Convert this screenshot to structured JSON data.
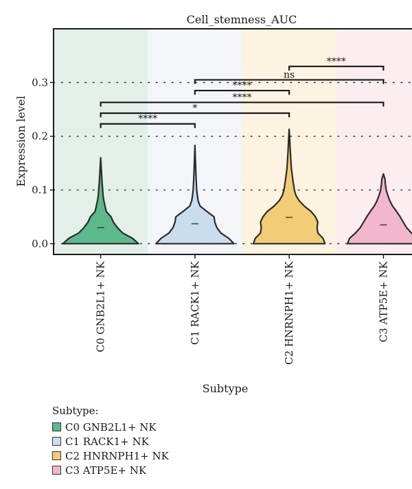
{
  "chart_data": {
    "type": "violin",
    "title": "Cell_stemness_AUC",
    "xlabel": "Subtype",
    "ylabel": "Expression level",
    "ylim": [
      -0.02,
      0.4
    ],
    "yticks": [
      "0.0",
      "0.1",
      "0.2",
      "0.3"
    ],
    "ytick_values": [
      0,
      0.1,
      0.2,
      0.3
    ],
    "grid": "horizontal dotted",
    "categories": [
      "C0 GNB2L1+ NK",
      "C1 RACK1+ NK",
      "C2 HNRNPH1+ NK",
      "C3 ATP5E+ NK"
    ],
    "series": [
      {
        "category": "C0 GNB2L1+ NK",
        "fill": "#5bb98b",
        "background": "#e3efe8",
        "median": 0.03,
        "max": 0.16,
        "density": [
          [
            0,
            0.95
          ],
          [
            0.01,
            0.8
          ],
          [
            0.02,
            0.55
          ],
          [
            0.03,
            0.42
          ],
          [
            0.04,
            0.32
          ],
          [
            0.05,
            0.26
          ],
          [
            0.06,
            0.14
          ],
          [
            0.07,
            0.11
          ],
          [
            0.08,
            0.08
          ],
          [
            0.09,
            0.06
          ],
          [
            0.1,
            0.05
          ],
          [
            0.12,
            0.03
          ],
          [
            0.14,
            0.015
          ],
          [
            0.16,
            0
          ]
        ]
      },
      {
        "category": "C1 RACK1+ NK",
        "fill": "#c9dcf0",
        "background": "#f3f5f8",
        "median": 0.037,
        "max": 0.183,
        "density": [
          [
            0,
            0.98
          ],
          [
            0.01,
            0.85
          ],
          [
            0.02,
            0.65
          ],
          [
            0.03,
            0.55
          ],
          [
            0.04,
            0.5
          ],
          [
            0.05,
            0.48
          ],
          [
            0.06,
            0.3
          ],
          [
            0.07,
            0.13
          ],
          [
            0.08,
            0.08
          ],
          [
            0.09,
            0.06
          ],
          [
            0.1,
            0.045
          ],
          [
            0.12,
            0.03
          ],
          [
            0.15,
            0.015
          ],
          [
            0.183,
            0
          ]
        ]
      },
      {
        "category": "C2 HNRNPH1+ NK",
        "fill": "#f3cd75",
        "background": "#fcf3e0",
        "median": 0.049,
        "max": 0.213,
        "density": [
          [
            0,
            0.9
          ],
          [
            0.01,
            0.85
          ],
          [
            0.02,
            0.72
          ],
          [
            0.03,
            0.7
          ],
          [
            0.04,
            0.72
          ],
          [
            0.05,
            0.66
          ],
          [
            0.06,
            0.55
          ],
          [
            0.07,
            0.38
          ],
          [
            0.08,
            0.25
          ],
          [
            0.09,
            0.17
          ],
          [
            0.1,
            0.13
          ],
          [
            0.12,
            0.09
          ],
          [
            0.14,
            0.055
          ],
          [
            0.17,
            0.03
          ],
          [
            0.2,
            0.01
          ],
          [
            0.213,
            0
          ]
        ]
      },
      {
        "category": "C3 ATP5E+ NK",
        "fill": "#f3b6cf",
        "background": "#fcedf1",
        "median": 0.035,
        "max": 0.13,
        "density": [
          [
            0,
            0.9
          ],
          [
            0.01,
            0.85
          ],
          [
            0.02,
            0.7
          ],
          [
            0.03,
            0.58
          ],
          [
            0.04,
            0.5
          ],
          [
            0.05,
            0.42
          ],
          [
            0.06,
            0.33
          ],
          [
            0.07,
            0.23
          ],
          [
            0.08,
            0.16
          ],
          [
            0.09,
            0.11
          ],
          [
            0.1,
            0.07
          ],
          [
            0.11,
            0.05
          ],
          [
            0.12,
            0.04
          ],
          [
            0.13,
            0
          ]
        ]
      }
    ],
    "comparisons": [
      {
        "from": 0,
        "to": 1,
        "label": "****",
        "y": 0.223
      },
      {
        "from": 0,
        "to": 3,
        "label": "****",
        "y": 0.263
      },
      {
        "from": 0,
        "to": 2,
        "label": "*",
        "y": 0.243
      },
      {
        "from": 1,
        "to": 2,
        "label": "****",
        "y": 0.285
      },
      {
        "from": 1,
        "to": 3,
        "label": "ns",
        "y": 0.305
      },
      {
        "from": 2,
        "to": 3,
        "label": "****",
        "y": 0.33
      }
    ]
  },
  "legend": {
    "title": "Subtype:",
    "items": [
      {
        "label": "C0 GNB2L1+ NK",
        "color": "#5bb98b"
      },
      {
        "label": "C1 RACK1+ NK",
        "color": "#c9dcf0"
      },
      {
        "label": "C2 HNRNPH1+ NK",
        "color": "#f3cd75"
      },
      {
        "label": "C3 ATP5E+ NK",
        "color": "#f3b6cf"
      }
    ]
  }
}
